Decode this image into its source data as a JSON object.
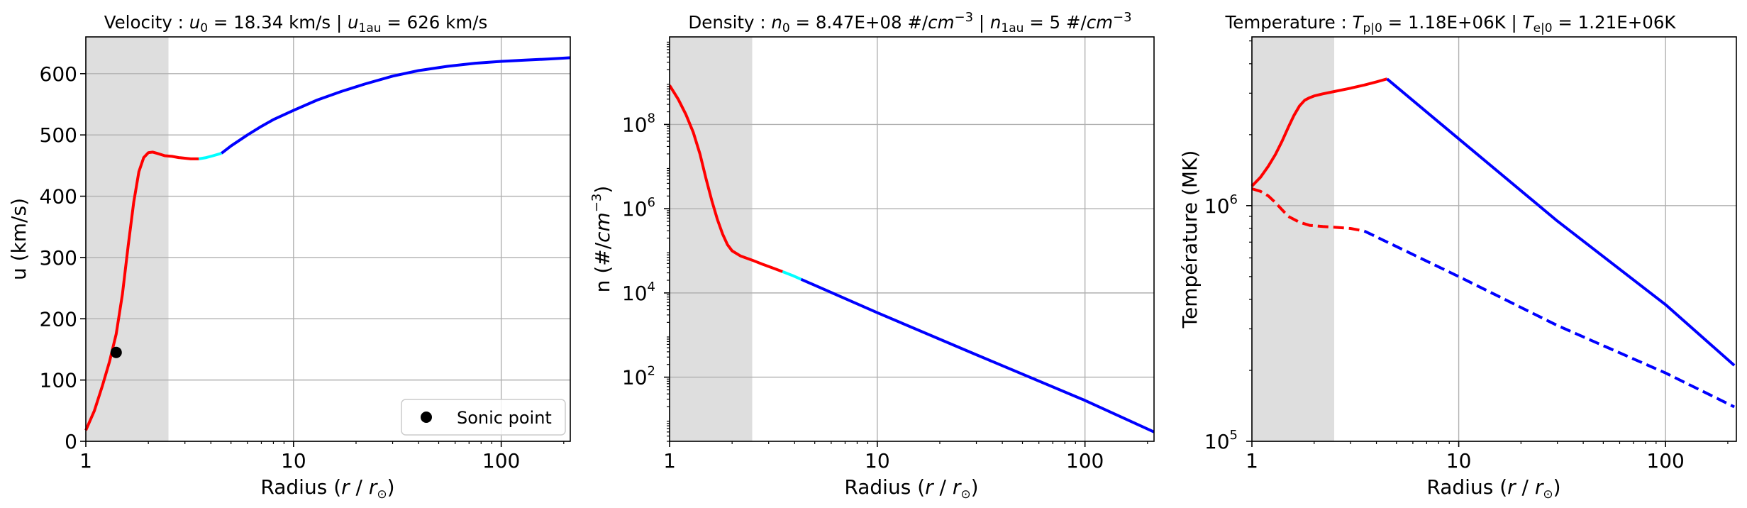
{
  "colors": {
    "shade": "#dedede",
    "grid": "#b0b0b0",
    "inner": "#ff0000",
    "transition": "#00ffff",
    "outer": "#0000ff",
    "marker": "#000000"
  },
  "panels": [
    {
      "title": {
        "pre": "Velocity : ",
        "v1": "u",
        "v1sub": "0",
        "mid": " = 18.34 km/s | ",
        "v2": "u",
        "v2sub": "1au",
        "post": " = 626 km/s"
      },
      "xlabel": {
        "pre": "Radius (",
        "r1": "r",
        "slash": " / ",
        "r2": "r",
        "sun": "⊙",
        "post": ")"
      },
      "ylabel": {
        "text": "u (km/s)"
      },
      "xticks": [
        "1",
        "10",
        "100"
      ],
      "yticks": [
        "0",
        "100",
        "200",
        "300",
        "400",
        "500",
        "600"
      ],
      "legend": {
        "label": "Sonic point"
      }
    },
    {
      "title": {
        "pre": "Density : ",
        "v1": "n",
        "v1sub": "0",
        "mid": " = 8.47E+08 #/",
        "unit1": "cm",
        "exp1": "−3",
        "sep": " | ",
        "v2": "n",
        "v2sub": "1au",
        "post": " = 5 #/",
        "unit2": "cm",
        "exp2": "−3"
      },
      "xlabel": {
        "pre": "Radius (",
        "r1": "r",
        "slash": " / ",
        "r2": "r",
        "sun": "⊙",
        "post": ")"
      },
      "ylabel": {
        "pre": "n (#/",
        "unit": "cm",
        "exp": "−3",
        "post": ")"
      },
      "xticks": [
        "1",
        "10",
        "100"
      ],
      "yticks": [
        {
          "base": "10",
          "exp": "2"
        },
        {
          "base": "10",
          "exp": "4"
        },
        {
          "base": "10",
          "exp": "6"
        },
        {
          "base": "10",
          "exp": "8"
        }
      ]
    },
    {
      "title": {
        "pre": "Temperature : ",
        "v1": "T",
        "v1sub": "p|0",
        "mid": " = 1.18E+06K | ",
        "v2": "T",
        "v2sub": "e|0",
        "post": " = 1.21E+06K"
      },
      "xlabel": {
        "pre": "Radius (",
        "r1": "r",
        "slash": " / ",
        "r2": "r",
        "sun": "⊙",
        "post": ")"
      },
      "ylabel": {
        "text": "Température (MK)"
      },
      "xticks": [
        "1",
        "10",
        "100"
      ],
      "yticks": [
        {
          "base": "10",
          "exp": "5"
        },
        {
          "base": "10",
          "exp": "6"
        }
      ]
    }
  ],
  "chart_data": [
    {
      "type": "line",
      "title": "Velocity : u0 = 18.34 km/s | u1au = 626 km/s",
      "xlabel": "Radius (r / r⊙)",
      "ylabel": "u (km/s)",
      "xscale": "log",
      "yscale": "linear",
      "xlim": [
        1,
        215
      ],
      "ylim": [
        0,
        660
      ],
      "grid": true,
      "legend_position": "lower-right",
      "shaded_x": [
        1,
        2.5
      ],
      "series": [
        {
          "color": "#ff0000",
          "style": "solid",
          "x": [
            1,
            1.1,
            1.2,
            1.3,
            1.4,
            1.5,
            1.6,
            1.7,
            1.8,
            1.9,
            2.0,
            2.1,
            2.2,
            2.4,
            2.6,
            2.8,
            3.0,
            3.2,
            3.5
          ],
          "y": [
            18,
            50,
            90,
            130,
            175,
            240,
            320,
            390,
            440,
            463,
            471,
            472,
            470,
            466,
            465,
            463,
            462,
            461,
            461
          ]
        },
        {
          "color": "#00ffff",
          "style": "solid",
          "x": [
            3.5,
            3.8,
            4.1,
            4.5
          ],
          "y": [
            461,
            463,
            466,
            470
          ]
        },
        {
          "color": "#0000ff",
          "style": "solid",
          "x": [
            4.5,
            5,
            6,
            7,
            8,
            10,
            13,
            17,
            22,
            30,
            40,
            55,
            75,
            100,
            130,
            170,
            215
          ],
          "y": [
            470,
            482,
            500,
            514,
            525,
            540,
            557,
            571,
            583,
            596,
            605,
            612,
            617,
            620,
            622,
            624,
            626
          ]
        }
      ],
      "points": [
        {
          "name": "Sonic point",
          "x": 1.4,
          "y": 145
        }
      ]
    },
    {
      "type": "line",
      "title": "Density : n0 = 8.47E+08 #/cm-3 | n1au = 5 #/cm-3",
      "xlabel": "Radius (r / r⊙)",
      "ylabel": "n (#/cm-3)",
      "xscale": "log",
      "yscale": "log",
      "xlim": [
        1,
        215
      ],
      "ylim": [
        3,
        12000000000
      ],
      "grid": true,
      "shaded_x": [
        1,
        2.5
      ],
      "series": [
        {
          "color": "#ff0000",
          "style": "solid",
          "x": [
            1,
            1.1,
            1.2,
            1.3,
            1.4,
            1.5,
            1.6,
            1.7,
            1.8,
            1.9,
            2.0,
            2.2,
            2.5,
            2.8,
            3.1,
            3.5
          ],
          "y": [
            847000000,
            400000000,
            170000000,
            65000000,
            20000000,
            5000000,
            1500000,
            550000,
            250000,
            140000,
            100000,
            75000,
            60000,
            48000,
            40000,
            32000
          ]
        },
        {
          "color": "#00ffff",
          "style": "solid",
          "x": [
            3.5,
            3.9,
            4.3
          ],
          "y": [
            32000,
            26000,
            21000
          ]
        },
        {
          "color": "#0000ff",
          "style": "solid",
          "x": [
            4.3,
            10,
            30,
            100,
            215
          ],
          "y": [
            21000,
            3400,
            340,
            28,
            5
          ]
        }
      ]
    },
    {
      "type": "line",
      "title": "Temperature : Tp|0 = 1.18E+06K | Te|0 = 1.21E+06K",
      "xlabel": "Radius (r / r⊙)",
      "ylabel": "Température (MK)",
      "xscale": "log",
      "yscale": "log",
      "xlim": [
        1,
        220
      ],
      "ylim": [
        100000,
        5200000
      ],
      "grid": true,
      "shaded_x": [
        1,
        2.5
      ],
      "series": [
        {
          "color": "#ff0000",
          "style": "solid",
          "x": [
            1,
            1.1,
            1.2,
            1.3,
            1.4,
            1.5,
            1.6,
            1.7,
            1.8,
            1.9,
            2.0,
            2.2,
            2.5,
            3.0,
            3.5,
            4.0,
            4.5
          ],
          "y": [
            1210000,
            1320000,
            1470000,
            1650000,
            1880000,
            2150000,
            2420000,
            2650000,
            2800000,
            2870000,
            2920000,
            2980000,
            3050000,
            3150000,
            3250000,
            3350000,
            3450000
          ]
        },
        {
          "color": "#0000ff",
          "style": "solid",
          "x": [
            4.5,
            10,
            30,
            100,
            215
          ],
          "y": [
            3450000,
            1920000,
            860000,
            380000,
            210000
          ]
        },
        {
          "color": "#ff0000",
          "style": "dashed",
          "x": [
            1,
            1.1,
            1.2,
            1.3,
            1.4,
            1.5,
            1.7,
            1.9,
            2.2,
            2.5,
            3.0,
            3.5
          ],
          "y": [
            1180000,
            1150000,
            1100000,
            1030000,
            960000,
            900000,
            850000,
            825000,
            815000,
            810000,
            800000,
            780000
          ]
        },
        {
          "color": "#0000ff",
          "style": "dashed",
          "x": [
            3.5,
            10,
            30,
            100,
            215
          ],
          "y": [
            780000,
            500000,
            310000,
            195000,
            140000
          ]
        }
      ]
    }
  ]
}
